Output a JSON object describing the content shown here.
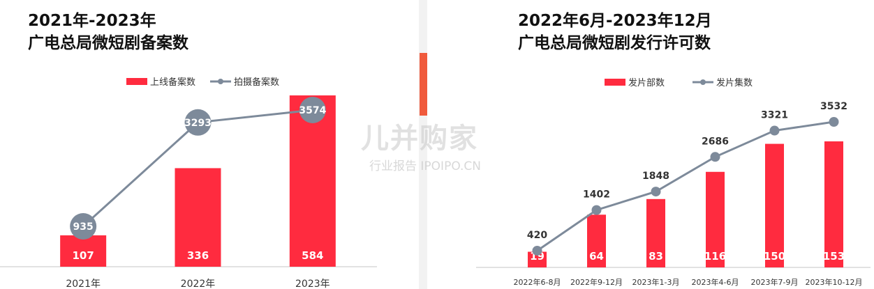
{
  "left": {
    "title_line1": "2021年-2023年",
    "title_line2": "广电总局微短剧备案数"
  },
  "right": {
    "title_line1": "2022年6月-2023年12月",
    "title_line2": "广电总局微短剧发行许可数"
  },
  "watermark": {
    "logo": "儿并购家",
    "sub": "行业报告 IPOIPO.CN"
  },
  "chart_data": [
    {
      "type": "bar",
      "categories": [
        "2021年",
        "2022年",
        "2023年"
      ],
      "series": [
        {
          "name": "上线备案数",
          "kind": "bar",
          "values": [
            107,
            336,
            584
          ],
          "color": "#ff2b3f"
        },
        {
          "name": "拍摄备案数",
          "kind": "line",
          "values": [
            935,
            3293,
            3574
          ],
          "color": "#7d8a9a"
        }
      ],
      "legend": "top-right",
      "grid": false
    },
    {
      "type": "bar",
      "categories": [
        "2022年6-8月",
        "2022年9-12月",
        "2023年1-3月",
        "2023年4-6月",
        "2023年7-9月",
        "2023年10-12月"
      ],
      "series": [
        {
          "name": "发片部数",
          "kind": "bar",
          "values": [
            19,
            64,
            83,
            116,
            150,
            153
          ],
          "color": "#ff2b3f"
        },
        {
          "name": "发片集数",
          "kind": "line",
          "values": [
            420,
            1402,
            1848,
            2686,
            3321,
            3532
          ],
          "color": "#7d8a9a"
        }
      ],
      "legend": "top-center",
      "grid": false
    }
  ]
}
